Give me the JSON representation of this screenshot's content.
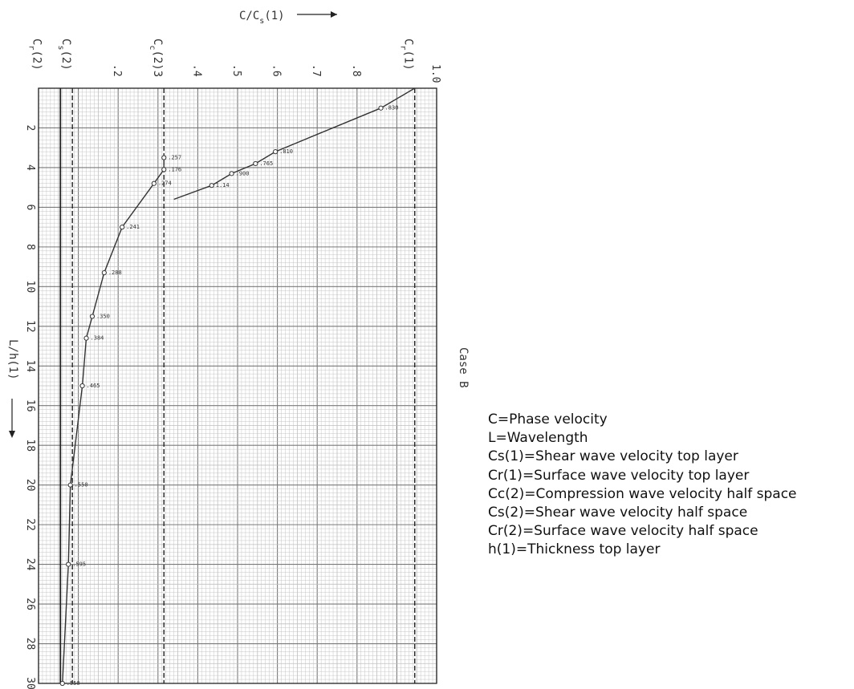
{
  "chart_data": {
    "type": "line",
    "title": "C/C_s(1)",
    "title_parts": {
      "main": "C/C",
      "sub": "s",
      "tail": "(1)"
    },
    "xlabel": "C/C_s(1)",
    "ylabel": "L/h(1)",
    "ylabel_text": "L/h(1)",
    "side_label": "Case B",
    "x_axis_position": "top",
    "y_axis_inverted": true,
    "xlim": [
      0,
      1.0
    ],
    "ylim": [
      0,
      30
    ],
    "grid": true,
    "x_ticks": [
      {
        "value": 0.2,
        "label": ".2"
      },
      {
        "value": 0.4,
        "label": ".4"
      },
      {
        "value": 0.5,
        "label": ".5"
      },
      {
        "value": 0.6,
        "label": ".6"
      },
      {
        "value": 0.7,
        "label": ".7"
      },
      {
        "value": 0.8,
        "label": ".8"
      },
      {
        "value": 1.0,
        "label": "1.0"
      }
    ],
    "y_ticks": [
      2,
      4,
      6,
      8,
      10,
      12,
      14,
      16,
      18,
      20,
      22,
      24,
      26,
      28,
      30
    ],
    "reference_lines": [
      {
        "value": 0.055,
        "sub": "r",
        "tail": "(2)",
        "style": "solid"
      },
      {
        "value": 0.085,
        "sub": "s",
        "tail": "(2)",
        "style": "dashed"
      },
      {
        "value": 0.315,
        "sub": "c",
        "tail": "(2)",
        "style": "dashed",
        "extra": "3"
      },
      {
        "value": 0.945,
        "sub": "r",
        "tail": "(1)",
        "style": "dashed"
      }
    ],
    "series": [
      {
        "points": [
          {
            "x": 0.315,
            "y": 3.5,
            "label": ".257"
          },
          {
            "x": 0.315,
            "y": 4.1,
            "label": ".176"
          },
          {
            "x": 0.29,
            "y": 4.8,
            "label": ".274"
          },
          {
            "x": 0.21,
            "y": 7.0,
            "label": ".241"
          },
          {
            "x": 0.165,
            "y": 9.3,
            "label": ".288"
          },
          {
            "x": 0.135,
            "y": 11.5,
            "label": ".350"
          },
          {
            "x": 0.12,
            "y": 12.6,
            "label": ".384"
          },
          {
            "x": 0.11,
            "y": 15.0,
            "label": ".465"
          },
          {
            "x": 0.08,
            "y": 20.0,
            "label": ".550"
          },
          {
            "x": 0.075,
            "y": 24.0,
            "label": ".595"
          },
          {
            "x": 0.06,
            "y": 30.0,
            "label": ".550"
          }
        ]
      },
      {
        "points": [
          {
            "x": 0.945,
            "y": 0.0
          },
          {
            "x": 0.86,
            "y": 1.0,
            "label": ".830"
          },
          {
            "x": 0.595,
            "y": 3.2,
            "label": ".810"
          },
          {
            "x": 0.545,
            "y": 3.8,
            "label": ".765"
          },
          {
            "x": 0.485,
            "y": 4.3,
            "label": ".900"
          },
          {
            "x": 0.435,
            "y": 4.9,
            "label": "1.14"
          },
          {
            "x": 0.34,
            "y": 5.6
          }
        ]
      }
    ]
  },
  "legend": {
    "lines": [
      "C=Phase velocity",
      "L=Wavelength",
      "Cs(1)=Shear wave velocity top layer",
      "Cr(1)=Surface wave velocity top layer",
      "Cc(2)=Compression wave velocity half space",
      "Cs(2)=Shear wave velocity half space",
      "Cr(2)=Surface wave velocity half space",
      "h(1)=Thickness top layer"
    ]
  },
  "colors": {
    "ink": "#222222",
    "grid_minor": "#bfbfbf",
    "grid_major": "#7a7a7a",
    "curve": "#333333"
  }
}
